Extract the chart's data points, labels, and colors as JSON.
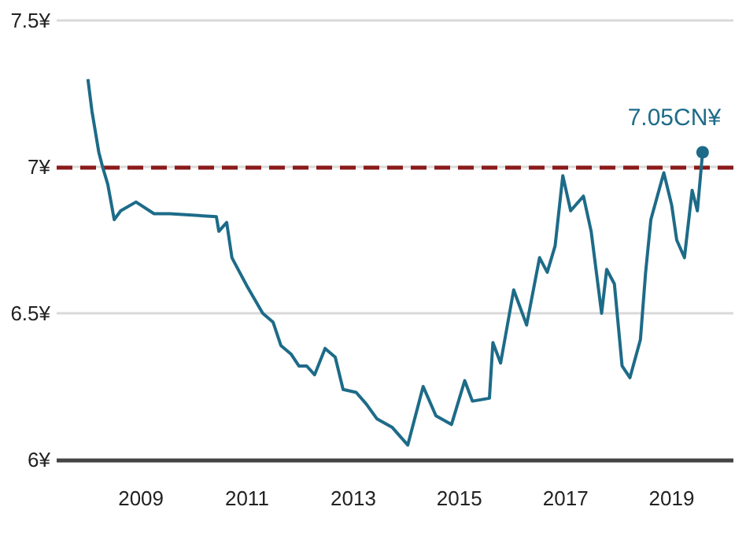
{
  "chart_data": {
    "type": "line",
    "x": [
      "2008-01-02",
      "2008-01-30",
      "2008-03-17",
      "2008-04-12",
      "2008-05-18",
      "2008-07-01",
      "2008-08-15",
      "2008-11-28",
      "2009-04-01",
      "2009-07-19",
      "2010-06-04",
      "2010-06-21",
      "2010-08-14",
      "2010-09-19",
      "2010-11-11",
      "2011-01-04",
      "2011-04-19",
      "2011-06-29",
      "2011-08-22",
      "2011-11-01",
      "2011-12-24",
      "2012-02-16",
      "2012-04-10",
      "2012-06-21",
      "2012-08-30",
      "2012-10-23",
      "2013-01-21",
      "2013-04-01",
      "2013-06-12",
      "2013-09-27",
      "2014-01-11",
      "2014-03-05",
      "2014-04-27",
      "2014-07-24",
      "2014-11-08",
      "2015-02-07",
      "2015-04-01",
      "2015-07-27",
      "2015-08-20",
      "2015-10-12",
      "2016-01-10",
      "2016-04-08",
      "2016-07-06",
      "2016-08-28",
      "2016-10-21",
      "2016-12-13",
      "2017-02-05",
      "2017-05-04",
      "2017-06-26",
      "2017-09-06",
      "2017-10-11",
      "2017-12-03",
      "2018-01-25",
      "2018-03-20",
      "2018-05-31",
      "2018-07-06",
      "2018-08-11",
      "2018-11-08",
      "2019-01-01",
      "2019-02-05",
      "2019-03-30",
      "2019-05-22",
      "2019-06-27",
      "2019-08-02"
    ],
    "series": [
      {
        "color": "#1d6b88",
        "values": [
          7.3,
          7.19,
          7.05,
          7.0,
          6.94,
          6.82,
          6.85,
          6.88,
          6.84,
          6.84,
          6.83,
          6.78,
          6.81,
          6.69,
          6.64,
          6.59,
          6.5,
          6.47,
          6.39,
          6.36,
          6.32,
          6.32,
          6.29,
          6.38,
          6.35,
          6.24,
          6.23,
          6.19,
          6.14,
          6.11,
          6.05,
          6.15,
          6.25,
          6.15,
          6.12,
          6.27,
          6.2,
          6.21,
          6.4,
          6.33,
          6.58,
          6.46,
          6.69,
          6.64,
          6.73,
          6.97,
          6.85,
          6.9,
          6.78,
          6.5,
          6.65,
          6.6,
          6.32,
          6.28,
          6.41,
          6.64,
          6.82,
          6.98,
          6.87,
          6.75,
          6.69,
          6.92,
          6.85,
          7.05
        ]
      }
    ],
    "xlim": [
      "2007-06",
      "2020-03"
    ],
    "xticks": [
      "2009",
      "2011",
      "2013",
      "2015",
      "2017",
      "2019"
    ],
    "ylim": [
      6,
      7.5
    ],
    "yticks": [
      {
        "value": 6,
        "label": "6¥"
      },
      {
        "value": 6.5,
        "label": "6.5¥"
      },
      {
        "value": 7,
        "label": "7¥"
      },
      {
        "value": 7.5,
        "label": "7.5¥"
      }
    ],
    "grid": "y",
    "marker": "none",
    "line_style": "solid",
    "ref_lines": [
      {
        "axis": "y",
        "value": 7,
        "color": "#8b1a1a",
        "line_style": "dashed"
      }
    ],
    "annotations": [
      {
        "text": "7.05CN¥",
        "x": "2019-08-02",
        "y": 7.05
      }
    ]
  }
}
